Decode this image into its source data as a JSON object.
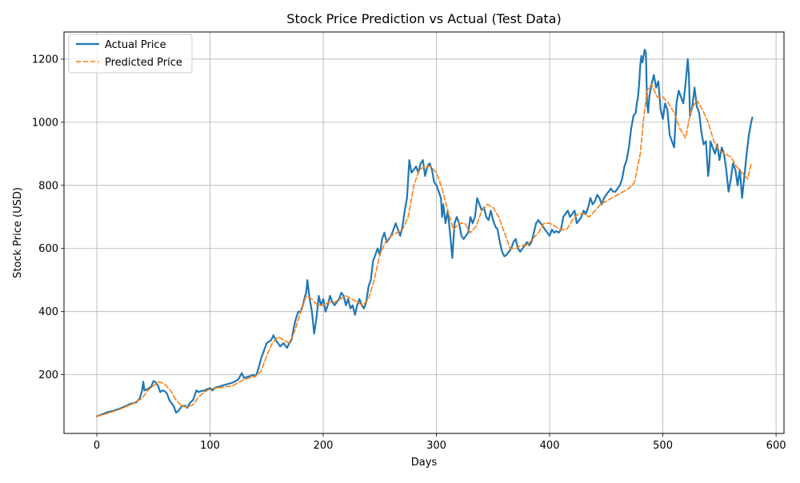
{
  "chart_data": {
    "type": "line",
    "title": "Stock Price Prediction vs Actual (Test Data)",
    "xlabel": "Days",
    "ylabel": "Stock Price (USD)",
    "xlim": [
      -29,
      607
    ],
    "ylim": [
      14,
      1286
    ],
    "x_ticks": [
      0,
      100,
      200,
      300,
      400,
      500,
      600
    ],
    "y_ticks": [
      200,
      400,
      600,
      800,
      1000,
      1200
    ],
    "grid": true,
    "legend_position": "upper-left",
    "series": [
      {
        "name": "Actual Price",
        "color": "#1f77b4",
        "style": "solid",
        "x": [
          0,
          5,
          10,
          15,
          20,
          25,
          30,
          35,
          38,
          40,
          41,
          42,
          45,
          48,
          50,
          52,
          54,
          56,
          58,
          60,
          62,
          64,
          66,
          68,
          70,
          72,
          75,
          78,
          80,
          82,
          85,
          88,
          90,
          92,
          95,
          98,
          100,
          102,
          105,
          108,
          110,
          115,
          120,
          125,
          128,
          130,
          135,
          138,
          140,
          142,
          145,
          148,
          150,
          152,
          154,
          156,
          158,
          160,
          162,
          165,
          168,
          170,
          172,
          174,
          176,
          178,
          180,
          182,
          184,
          185,
          186,
          188,
          190,
          192,
          194,
          196,
          198,
          200,
          202,
          204,
          206,
          208,
          210,
          212,
          214,
          216,
          218,
          220,
          222,
          224,
          226,
          228,
          230,
          232,
          234,
          236,
          238,
          240,
          242,
          244,
          246,
          248,
          250,
          252,
          254,
          256,
          258,
          260,
          262,
          264,
          266,
          268,
          270,
          272,
          274,
          276,
          278,
          280,
          282,
          284,
          286,
          288,
          290,
          292,
          294,
          296,
          298,
          300,
          302,
          304,
          305,
          306,
          308,
          310,
          312,
          314,
          316,
          318,
          320,
          322,
          324,
          326,
          328,
          330,
          332,
          334,
          336,
          338,
          340,
          342,
          344,
          346,
          348,
          350,
          352,
          354,
          356,
          358,
          360,
          362,
          364,
          366,
          368,
          370,
          372,
          374,
          376,
          378,
          380,
          382,
          384,
          386,
          388,
          390,
          392,
          394,
          396,
          398,
          400,
          402,
          404,
          406,
          408,
          410,
          412,
          414,
          416,
          418,
          420,
          422,
          424,
          426,
          428,
          430,
          432,
          434,
          436,
          438,
          440,
          442,
          444,
          446,
          448,
          450,
          452,
          454,
          456,
          458,
          460,
          462,
          464,
          466,
          468,
          470,
          472,
          474,
          476,
          477,
          478,
          479,
          480,
          481,
          482,
          483,
          484,
          485,
          486,
          487,
          488,
          490,
          492,
          494,
          496,
          498,
          500,
          502,
          504,
          506,
          508,
          510,
          512,
          514,
          516,
          518,
          520,
          522,
          523,
          524,
          526,
          528,
          530,
          532,
          534,
          536,
          538,
          540,
          541,
          542,
          544,
          546,
          548,
          550,
          552,
          554,
          556,
          558,
          560,
          562,
          564,
          566,
          568,
          570,
          572,
          574,
          576,
          578,
          579
        ],
        "y": [
          68,
          75,
          82,
          86,
          92,
          100,
          108,
          113,
          125,
          150,
          178,
          150,
          155,
          162,
          180,
          176,
          165,
          145,
          150,
          148,
          140,
          120,
          110,
          100,
          80,
          85,
          100,
          102,
          95,
          110,
          120,
          150,
          145,
          148,
          150,
          155,
          158,
          150,
          160,
          162,
          165,
          170,
          175,
          185,
          205,
          190,
          195,
          200,
          195,
          210,
          250,
          280,
          300,
          305,
          310,
          325,
          310,
          300,
          290,
          300,
          285,
          300,
          310,
          350,
          380,
          400,
          400,
          420,
          450,
          460,
          500,
          440,
          400,
          330,
          380,
          450,
          420,
          440,
          400,
          420,
          450,
          430,
          420,
          430,
          440,
          460,
          450,
          420,
          440,
          410,
          420,
          390,
          420,
          440,
          420,
          410,
          430,
          480,
          500,
          560,
          580,
          600,
          580,
          630,
          650,
          620,
          630,
          640,
          660,
          680,
          660,
          640,
          670,
          720,
          760,
          880,
          840,
          850,
          860,
          840,
          870,
          880,
          830,
          860,
          870,
          850,
          810,
          800,
          780,
          760,
          700,
          740,
          680,
          720,
          650,
          570,
          680,
          700,
          680,
          640,
          630,
          640,
          650,
          700,
          680,
          700,
          760,
          740,
          720,
          730,
          700,
          690,
          720,
          690,
          670,
          660,
          620,
          590,
          575,
          580,
          590,
          600,
          620,
          630,
          600,
          590,
          600,
          610,
          620,
          610,
          620,
          650,
          680,
          690,
          680,
          670,
          660,
          650,
          640,
          660,
          650,
          655,
          650,
          660,
          700,
          710,
          720,
          700,
          710,
          720,
          680,
          690,
          700,
          720,
          710,
          730,
          760,
          740,
          750,
          770,
          760,
          740,
          760,
          770,
          780,
          790,
          780,
          780,
          790,
          800,
          820,
          860,
          880,
          920,
          980,
          1020,
          1030,
          1060,
          1080,
          1120,
          1180,
          1210,
          1190,
          1210,
          1230,
          1220,
          1060,
          1030,
          1080,
          1120,
          1150,
          1110,
          1130,
          1040,
          1010,
          1060,
          1040,
          960,
          940,
          920,
          1060,
          1100,
          1080,
          1060,
          1120,
          1200,
          1150,
          1020,
          1050,
          1110,
          1050,
          1030,
          970,
          930,
          940,
          830,
          860,
          940,
          920,
          900,
          930,
          880,
          920,
          900,
          850,
          780,
          820,
          870,
          850,
          800,
          850,
          760,
          830,
          900,
          960,
          1000,
          1015
        ]
      },
      {
        "name": "Predicted Price",
        "color": "#ff7f0e",
        "style": "dashed",
        "x": [
          0,
          10,
          20,
          30,
          40,
          45,
          50,
          55,
          60,
          65,
          70,
          75,
          80,
          85,
          90,
          95,
          100,
          105,
          110,
          120,
          130,
          140,
          145,
          150,
          155,
          160,
          165,
          170,
          175,
          180,
          185,
          190,
          195,
          200,
          205,
          210,
          215,
          220,
          225,
          230,
          235,
          240,
          245,
          250,
          255,
          260,
          265,
          270,
          275,
          280,
          285,
          290,
          295,
          300,
          305,
          310,
          315,
          320,
          325,
          330,
          335,
          340,
          345,
          350,
          355,
          360,
          365,
          370,
          375,
          380,
          385,
          390,
          395,
          400,
          405,
          410,
          415,
          420,
          425,
          430,
          435,
          440,
          445,
          450,
          455,
          460,
          465,
          470,
          475,
          480,
          483,
          486,
          490,
          495,
          500,
          505,
          510,
          515,
          520,
          525,
          530,
          535,
          540,
          545,
          550,
          555,
          560,
          565,
          570,
          575,
          578
        ],
        "y": [
          68,
          78,
          90,
          105,
          125,
          150,
          165,
          178,
          170,
          150,
          120,
          100,
          98,
          105,
          130,
          145,
          155,
          158,
          160,
          165,
          185,
          195,
          210,
          260,
          300,
          320,
          310,
          300,
          340,
          400,
          450,
          440,
          420,
          420,
          430,
          430,
          440,
          450,
          440,
          430,
          420,
          440,
          500,
          580,
          620,
          640,
          650,
          660,
          700,
          800,
          850,
          860,
          860,
          840,
          790,
          720,
          660,
          680,
          680,
          650,
          670,
          720,
          740,
          730,
          700,
          650,
          600,
          600,
          610,
          610,
          630,
          650,
          680,
          680,
          670,
          660,
          660,
          690,
          710,
          710,
          700,
          720,
          740,
          750,
          760,
          770,
          780,
          790,
          810,
          900,
          1010,
          1100,
          1120,
          1080,
          1080,
          1060,
          1030,
          980,
          950,
          1040,
          1070,
          1040,
          1000,
          940,
          910,
          900,
          890,
          860,
          840,
          820,
          870
        ]
      }
    ]
  }
}
